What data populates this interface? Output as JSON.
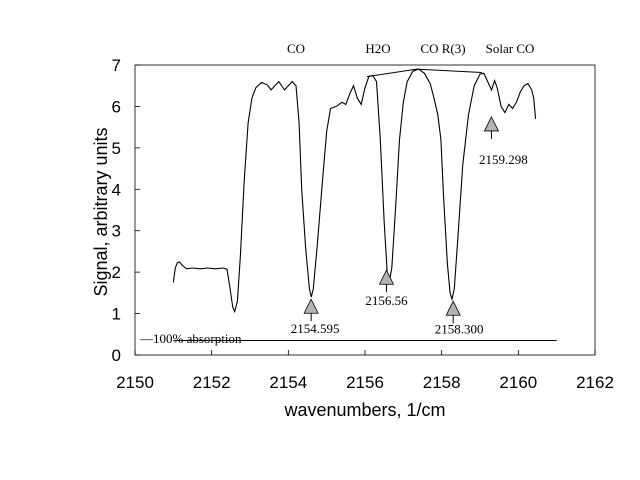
{
  "chart_data": {
    "type": "line",
    "title": "",
    "xlabel": "wavenumbers, 1/cm",
    "ylabel": "Signal, arbitrary units",
    "xlim": [
      2150,
      2162
    ],
    "ylim": [
      0,
      7
    ],
    "xticks": [
      2150,
      2152,
      2154,
      2156,
      2158,
      2160,
      2162
    ],
    "yticks": [
      0,
      1,
      2,
      3,
      4,
      5,
      6,
      7
    ],
    "grid": false,
    "series": [
      {
        "values": [
          [
            2151.0,
            1.75
          ],
          [
            2151.05,
            2.1
          ],
          [
            2151.1,
            2.22
          ],
          [
            2151.15,
            2.25
          ],
          [
            2151.25,
            2.15
          ],
          [
            2151.35,
            2.08
          ],
          [
            2151.5,
            2.1
          ],
          [
            2151.7,
            2.08
          ],
          [
            2151.9,
            2.1
          ],
          [
            2152.1,
            2.08
          ],
          [
            2152.3,
            2.1
          ],
          [
            2152.4,
            2.07
          ],
          [
            2152.48,
            1.6
          ],
          [
            2152.55,
            1.15
          ],
          [
            2152.6,
            1.05
          ],
          [
            2152.67,
            1.3
          ],
          [
            2152.75,
            2.4
          ],
          [
            2152.85,
            4.2
          ],
          [
            2152.95,
            5.6
          ],
          [
            2153.05,
            6.2
          ],
          [
            2153.15,
            6.45
          ],
          [
            2153.3,
            6.58
          ],
          [
            2153.45,
            6.52
          ],
          [
            2153.55,
            6.4
          ],
          [
            2153.65,
            6.5
          ],
          [
            2153.75,
            6.6
          ],
          [
            2153.9,
            6.4
          ],
          [
            2154.0,
            6.5
          ],
          [
            2154.1,
            6.6
          ],
          [
            2154.2,
            6.5
          ],
          [
            2154.28,
            5.6
          ],
          [
            2154.35,
            4.0
          ],
          [
            2154.45,
            2.6
          ],
          [
            2154.55,
            1.6
          ],
          [
            2154.6,
            1.4
          ],
          [
            2154.65,
            1.6
          ],
          [
            2154.75,
            2.6
          ],
          [
            2154.9,
            4.3
          ],
          [
            2155.0,
            5.4
          ],
          [
            2155.1,
            5.95
          ],
          [
            2155.25,
            6.0
          ],
          [
            2155.4,
            6.1
          ],
          [
            2155.5,
            6.05
          ],
          [
            2155.6,
            6.3
          ],
          [
            2155.7,
            6.5
          ],
          [
            2155.8,
            6.2
          ],
          [
            2155.9,
            6.05
          ],
          [
            2156.0,
            6.45
          ],
          [
            2156.1,
            6.72
          ],
          [
            2156.2,
            6.75
          ],
          [
            2156.3,
            6.6
          ],
          [
            2156.4,
            5.2
          ],
          [
            2156.5,
            3.2
          ],
          [
            2156.58,
            2.0
          ],
          [
            2156.63,
            1.75
          ],
          [
            2156.7,
            2.1
          ],
          [
            2156.8,
            3.6
          ],
          [
            2156.9,
            5.2
          ],
          [
            2157.0,
            6.1
          ],
          [
            2157.1,
            6.6
          ],
          [
            2157.25,
            6.85
          ],
          [
            2157.4,
            6.9
          ],
          [
            2157.55,
            6.8
          ],
          [
            2157.7,
            6.55
          ],
          [
            2157.8,
            6.2
          ],
          [
            2157.9,
            5.8
          ],
          [
            2157.98,
            5.2
          ],
          [
            2158.05,
            3.8
          ],
          [
            2158.15,
            2.2
          ],
          [
            2158.22,
            1.5
          ],
          [
            2158.27,
            1.35
          ],
          [
            2158.33,
            1.6
          ],
          [
            2158.42,
            2.8
          ],
          [
            2158.55,
            4.6
          ],
          [
            2158.7,
            5.8
          ],
          [
            2158.85,
            6.5
          ],
          [
            2159.0,
            6.78
          ],
          [
            2159.1,
            6.8
          ],
          [
            2159.2,
            6.6
          ],
          [
            2159.3,
            6.4
          ],
          [
            2159.38,
            6.62
          ],
          [
            2159.45,
            6.45
          ],
          [
            2159.55,
            6.0
          ],
          [
            2159.65,
            5.85
          ],
          [
            2159.75,
            6.05
          ],
          [
            2159.85,
            5.95
          ],
          [
            2159.95,
            6.1
          ],
          [
            2160.05,
            6.35
          ],
          [
            2160.15,
            6.5
          ],
          [
            2160.25,
            6.55
          ],
          [
            2160.35,
            6.4
          ],
          [
            2160.4,
            6.2
          ],
          [
            2160.45,
            5.7
          ]
        ]
      }
    ],
    "baseline": {
      "y": 0.35,
      "x_range": [
        2151.0,
        2161.0
      ],
      "label": "100% absorption"
    },
    "annotations": [
      {
        "text": "2154.595",
        "arrow_x": 2154.595,
        "arrow_y": 1.25
      },
      {
        "text": "2156.56",
        "arrow_x": 2156.56,
        "arrow_y": 1.95
      },
      {
        "text": "2158.300",
        "arrow_x": 2158.3,
        "arrow_y": 1.2
      },
      {
        "text": "2159.298",
        "arrow_x": 2159.298,
        "arrow_y": 5.65
      }
    ],
    "top_labels": [
      "CO",
      "H2O",
      "CO R(3)",
      "Solar CO"
    ]
  }
}
